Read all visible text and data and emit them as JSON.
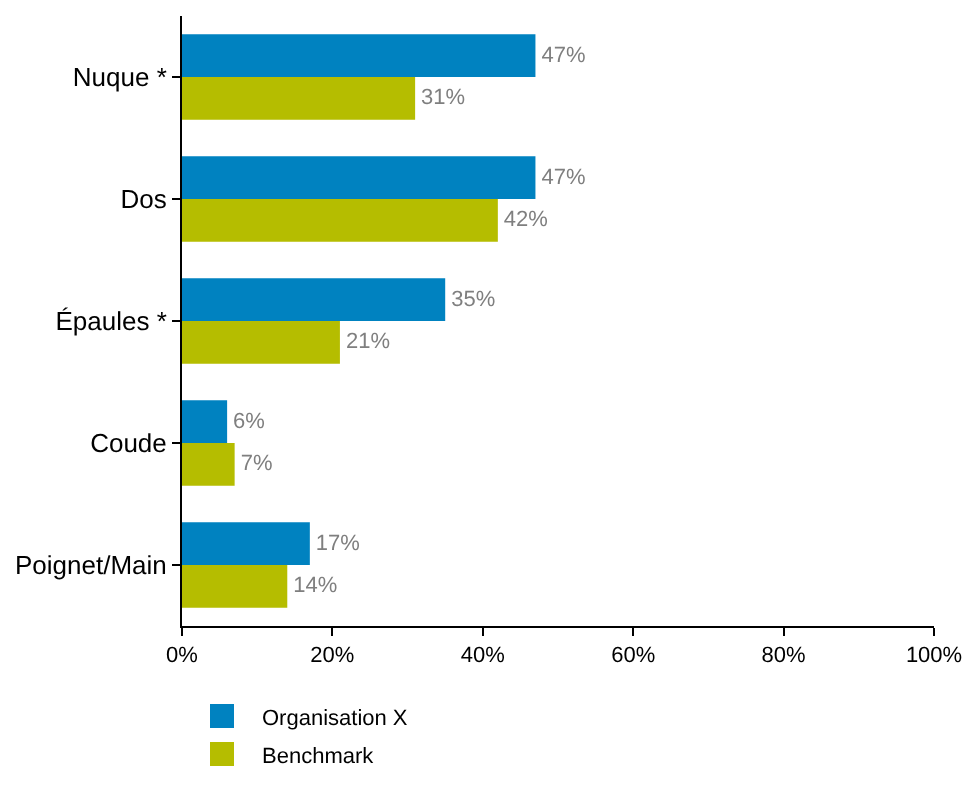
{
  "chart_data": {
    "type": "bar",
    "orientation": "horizontal",
    "categories": [
      "Nuque *",
      "Dos",
      "Épaules *",
      "Coude",
      "Poignet/Main"
    ],
    "series": [
      {
        "name": "Organisation X",
        "color": "#0082c0",
        "values": [
          47,
          47,
          35,
          6,
          17
        ],
        "value_labels": [
          "47%",
          "47%",
          "35%",
          "6%",
          "17%"
        ]
      },
      {
        "name": "Benchmark",
        "color": "#b5bd00",
        "values": [
          31,
          42,
          21,
          7,
          14
        ],
        "value_labels": [
          "31%",
          "42%",
          "21%",
          "7%",
          "14%"
        ]
      }
    ],
    "xlim": [
      0,
      100
    ],
    "xticks": [
      {
        "value": 0,
        "label": "0%"
      },
      {
        "value": 20,
        "label": "20%"
      },
      {
        "value": 40,
        "label": "40%"
      },
      {
        "value": 60,
        "label": "60%"
      },
      {
        "value": 80,
        "label": "80%"
      },
      {
        "value": 100,
        "label": "100%"
      }
    ],
    "legend": "bottom left"
  }
}
